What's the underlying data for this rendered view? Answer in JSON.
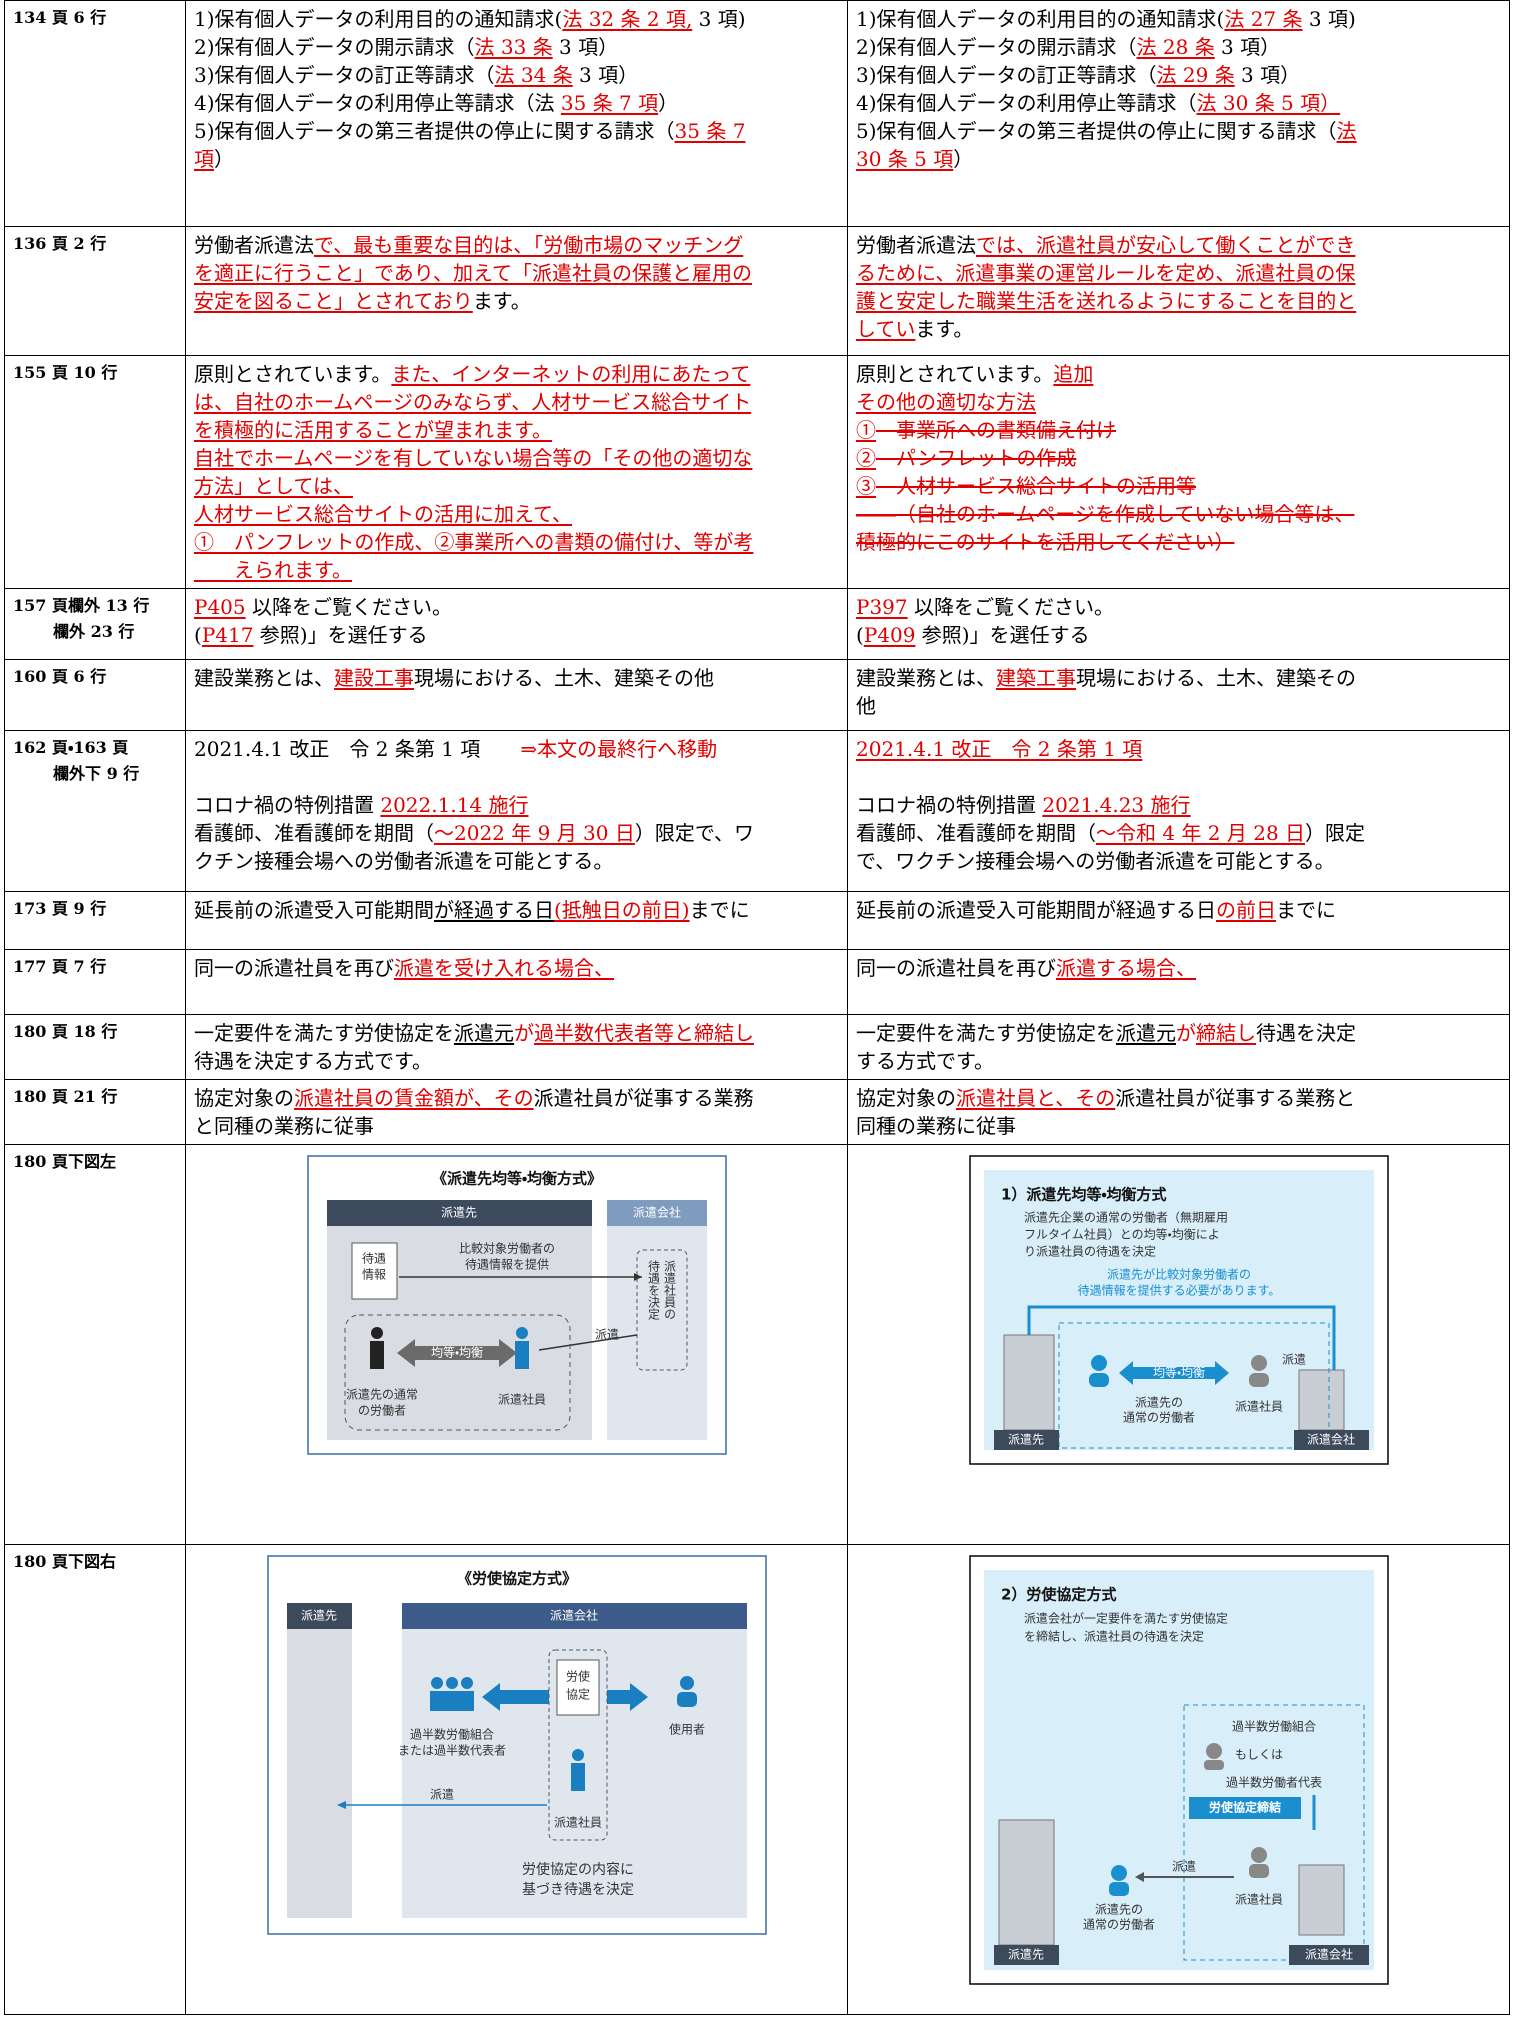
{
  "table": {
    "rows": [
      {
        "location": [
          "134 頁 6 行"
        ],
        "before": [
          [
            [
              "1)保有個人データの利用目的の通知請求(",
              {
                "text": "法 32 条 2 項,",
                "red": true,
                "underline": true
              },
              " 3 項)"
            ],
            [
              "2)保有個人データの開示請求（",
              {
                "text": "法 33 条",
                "red": true,
                "underline": true
              },
              " 3 項）"
            ],
            [
              "3)保有個人データの訂正等請求（",
              {
                "text": "法 34 条",
                "red": true,
                "underline": true
              },
              " 3 項）"
            ],
            [
              "4)保有個人データの利用停止等請求（法 ",
              {
                "text": "35 条 7 項",
                "red": true,
                "underline": true
              },
              "）"
            ],
            [
              "5)保有個人データの第三者提供の停止に関する請求（",
              {
                "text": "35 条 7",
                "red": true,
                "underline": true
              }
            ],
            [
              {
                "text": "項",
                "red": true,
                "underline": true
              },
              "）"
            ]
          ]
        ],
        "after": [
          [
            [
              "1)保有個人データの利用目的の通知請求(",
              {
                "text": "法 27 条",
                "red": true,
                "underline": true
              },
              " 3 項)"
            ],
            [
              "2)保有個人データの開示請求（",
              {
                "text": "法 28 条",
                "red": true,
                "underline": true
              },
              " 3 項）"
            ],
            [
              "3)保有個人データの訂正等請求（",
              {
                "text": "法 29 条",
                "red": true,
                "underline": true
              },
              " 3 項）"
            ],
            [
              "4)保有個人データの利用停止等請求（",
              {
                "text": "法 30 条 5 項）",
                "red": true,
                "underline": true
              }
            ],
            [
              "5)保有個人データの第三者提供の停止に関する請求（",
              {
                "text": "法",
                "red": true,
                "underline": true
              }
            ],
            [
              {
                "text": "30 条 5 項",
                "red": true,
                "underline": true
              },
              "）"
            ]
          ]
        ]
      },
      {
        "location": [
          "136 頁 2 行"
        ],
        "before": [
          [
            [
              "労働者派遣法",
              {
                "text": "で、最も重要な目的は、「労働市場のマッチング",
                "red": true,
                "underline": true
              }
            ],
            [
              {
                "text": "を適正に行うこと」であり、加えて「派遣社員の保護と雇用の",
                "red": true,
                "underline": true
              }
            ],
            [
              {
                "text": "安定を図ること」とされており",
                "red": true,
                "underline": true
              },
              "ます。"
            ]
          ]
        ],
        "after": [
          [
            [
              "労働者派遣法",
              {
                "text": "では、派遣社員が安心して働くことができ",
                "red": true,
                "underline": true
              }
            ],
            [
              {
                "text": "るために、派遣事業の運営ルールを定め、派遣社員の保",
                "red": true,
                "underline": true
              }
            ],
            [
              {
                "text": "護と安定した職業生活を送れるようにすることを目的と",
                "red": true,
                "underline": true
              }
            ],
            [
              {
                "text": "してい",
                "red": true,
                "underline": true
              },
              "ます。"
            ]
          ]
        ]
      },
      {
        "location": [
          "155 頁 10 行"
        ],
        "before": [
          [
            [
              "原則とされています。",
              {
                "text": "また、インターネットの利用にあたって",
                "red": true,
                "underline": true
              }
            ],
            [
              {
                "text": "は、自社のホームページのみならず、人材サービス総合サイト",
                "red": true,
                "underline": true
              }
            ],
            [
              {
                "text": "を積極的に活用することが望まれます。",
                "red": true,
                "underline": true
              }
            ],
            [
              {
                "text": "自社でホームページを有していない場合等の「その他の適切な",
                "red": true,
                "underline": true
              }
            ],
            [
              {
                "text": "方法」としては、",
                "red": true,
                "underline": true
              }
            ],
            [
              {
                "text": "人材サービス総合サイトの活用に加えて、",
                "red": true,
                "underline": true
              }
            ],
            [
              {
                "text": "①　パンフレットの作成、②事業所への書類の備付け、等が考",
                "red": true,
                "underline": true
              }
            ],
            [
              {
                "text": "　　えられます。",
                "red": true,
                "underline": true
              }
            ]
          ]
        ],
        "after": [
          [
            [
              "原則とされています。",
              {
                "text": "追加",
                "red": true,
                "underline": true
              }
            ],
            [
              {
                "text": "その他の適切な方法",
                "red": true,
                "underline": true
              }
            ],
            [
              {
                "text": "①",
                "red": true,
                "underline": true
              },
              {
                "text": "　事業所への書類備え付け",
                "red": true,
                "strike": true
              }
            ],
            [
              {
                "text": "②",
                "red": true,
                "underline": true
              },
              {
                "text": "　パンフレットの作成",
                "red": true,
                "strike": true
              }
            ],
            [
              {
                "text": "③",
                "red": true,
                "underline": true
              },
              {
                "text": "　人材サービス総合サイトの活用等",
                "red": true,
                "strike": true
              }
            ],
            [
              {
                "text": "――（自社のホームページを作成していない場合等は、",
                "red": true,
                "strike": true
              }
            ],
            [
              {
                "text": "積極的にこのサイトを活用してください）",
                "red": true,
                "strike": true
              }
            ]
          ]
        ]
      },
      {
        "location": [
          "157 頁欄外 13 行",
          "欄外 23 行"
        ],
        "before": [
          [
            [
              {
                "text": "P405",
                "red": true,
                "underline": true
              },
              " 以降をご覧ください。"
            ],
            [
              "(",
              {
                "text": "P417",
                "red": true,
                "underline": true
              },
              " 参照)」を選任する"
            ]
          ]
        ],
        "after": [
          [
            [
              {
                "text": "P397",
                "red": true,
                "underline": true
              },
              " 以降をご覧ください。"
            ],
            [
              "(",
              {
                "text": "P409",
                "red": true,
                "underline": true
              },
              " 参照)」を選任する"
            ]
          ]
        ]
      },
      {
        "location": [
          "160 頁 6 行"
        ],
        "before": [
          [
            [
              "建設業務とは、",
              {
                "text": "建設工事",
                "red": true,
                "underline": true
              },
              "現場における、土木、建築その他"
            ]
          ]
        ],
        "after": [
          [
            [
              "建設業務とは、",
              {
                "text": "建築工事",
                "red": true,
                "underline": true
              },
              "現場における、土木、建築その"
            ],
            [
              "他"
            ]
          ]
        ]
      },
      {
        "location": [
          "162 頁・163 頁",
          "欄外下 9 行"
        ],
        "before": [
          [
            [
              "2021.4.1 改正　令 2 条第 1 項　　",
              {
                "text": "⇒本文の最終行へ移動",
                "red": true
              }
            ]
          ],
          [
            [
              "コロナ禍の特例措置 ",
              {
                "text": "2022.1.14 施行",
                "red": true,
                "underline": true
              }
            ],
            [
              "看護師、准看護師を期間（",
              {
                "text": "～2022 年 9 月 30 日",
                "red": true,
                "underline": true
              },
              "）限定で、ワ"
            ],
            [
              "クチン接種会場への労働者派遣を可能とする。"
            ]
          ]
        ],
        "after": [
          [
            [
              {
                "text": "2021.4.1 改正　令 2 条第 1 項",
                "red": true,
                "underline": true
              }
            ]
          ],
          [
            [
              "コロナ禍の特例措置 ",
              {
                "text": "2021.4.23 施行",
                "red": true,
                "underline": true
              }
            ],
            [
              "看護師、准看護師を期間（",
              {
                "text": "～令和 4 年 2 月 28 日",
                "red": true,
                "underline": true
              },
              "）限定"
            ],
            [
              "で、ワクチン接種会場への労働者派遣を可能とする。"
            ]
          ]
        ]
      },
      {
        "location": [
          "173 頁 9 行"
        ],
        "before": [
          [
            [
              "延長前の派遣受入可能期間",
              {
                "text": "が経過する日",
                "underline": true
              },
              {
                "text": "(抵触日の前日)",
                "red": true,
                "underline": true
              },
              "までに"
            ]
          ]
        ],
        "after": [
          [
            [
              "延長前の派遣受入可能期間が経過する日",
              {
                "text": "の前日",
                "red": true,
                "underline": true
              },
              "までに"
            ]
          ]
        ]
      },
      {
        "location": [
          "177 頁 7 行"
        ],
        "before": [
          [
            [
              " 同一の派遣社員を再び",
              {
                "text": "派遣を受け入れる場合、",
                "red": true,
                "underline": true
              }
            ]
          ]
        ],
        "after": [
          [
            [
              "同一の派遣社員を再び",
              {
                "text": "派遣する場合、",
                "red": true,
                "underline": true
              }
            ]
          ]
        ]
      },
      {
        "location": [
          "180 頁 18 行"
        ],
        "before": [
          [
            [
              "一定要件を満たす労使協定を",
              {
                "text": "派遣元",
                "underline": true
              },
              {
                "text": "が",
                "red": true
              },
              {
                "text": "過半数代表者等と締結し",
                "red": true,
                "underline": true
              }
            ],
            [
              "待遇を決定する方式です。"
            ]
          ]
        ],
        "after": [
          [
            [
              "一定要件を満たす労使協定を",
              {
                "text": "派遣元",
                "underline": true
              },
              {
                "text": "が",
                "red": true
              },
              {
                "text": "締結し",
                "red": true,
                "underline": true
              },
              "待遇を決定"
            ],
            [
              "する方式です。"
            ]
          ]
        ]
      },
      {
        "location": [
          "180 頁 21 行"
        ],
        "before": [
          [
            [
              "協定対象の",
              {
                "text": "派遣社員の賃金額が、その",
                "red": true,
                "underline": true
              },
              "派遣社員が従事する業務"
            ],
            [
              "と同種の業務に従事"
            ]
          ]
        ],
        "after": [
          [
            [
              "協定対象の",
              {
                "text": "派遣社員と、その",
                "red": true,
                "underline": true
              },
              "派遣社員が従事する業務と"
            ],
            [
              "同種の業務に従事"
            ]
          ]
        ]
      },
      {
        "location": [
          "180 頁下図左"
        ],
        "before": {
          "texts": [
            "《派遣先均等・均衡方式》",
            "派遣先",
            "派遣会社",
            "待遇",
            "情報",
            "比較対象労働者の",
            "待遇情報を提供",
            "派遣社員の",
            "待遇を決定",
            "均等・均衡",
            "派遣",
            "派遣先の通常",
            "の労働者",
            "派遣社員"
          ]
        },
        "after": {
          "texts": [
            "1）派遣先均等・均衡方式",
            "派遣先企業の通常の労働者（無期雇用",
            "フルタイム社員）との均等・均衡によ",
            "り派遣社員の待遇を決定",
            "派遣先が比較対象労働者の",
            "待遇情報を提供する必要があります。",
            "均等・均衡",
            "派遣",
            "派遣先の",
            "通常の労働者",
            "派遣社員",
            "派遣先",
            "派遣会社"
          ]
        }
      },
      {
        "location": [
          "180 頁下図右"
        ],
        "before": {
          "texts": [
            "《労使協定方式》",
            "派遣先",
            "派遣会社",
            "労使",
            "協定",
            "過半数労働組合",
            "または過半数代表者",
            "使用者",
            "派遣",
            "派遣社員",
            "労使協定の内容に",
            "基づき待遇を決定"
          ]
        },
        "after": {
          "texts": [
            "2）労使協定方式",
            "派遣会社が一定要件を満たす労使協定",
            "を締結し、派遣社員の待遇を決定",
            "過半数労働組合",
            "もしくは",
            "過半数労働者代表",
            "労使協定締結",
            "派遣",
            "派遣先の",
            "通常の労働者",
            "派遣社員",
            "派遣先",
            "派遣会社"
          ]
        }
      }
    ]
  }
}
